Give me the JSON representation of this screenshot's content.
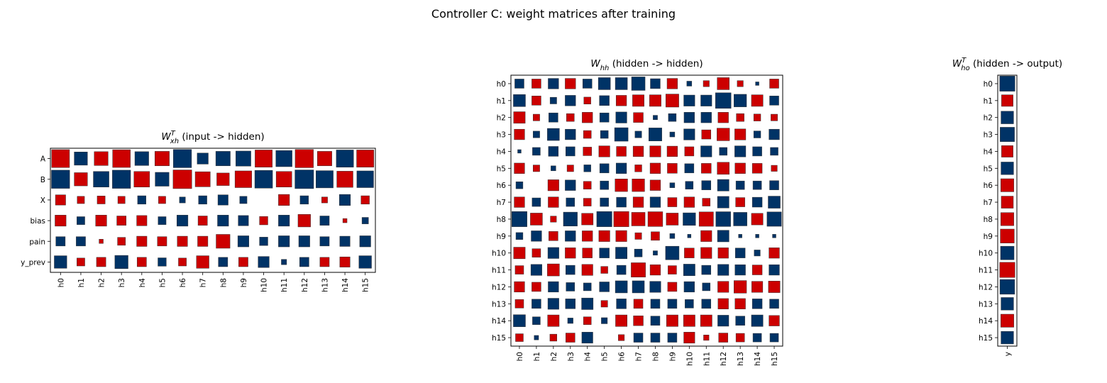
{
  "figure_title": "Controller C: weight matrices after training",
  "colors": {
    "positive": "#003366",
    "negative": "#CC0000",
    "edge": "#333333"
  },
  "chart_data": [
    {
      "type": "heatmap",
      "style": "hinton",
      "title": "W_xh^T (input -> hidden)",
      "title_base": "W",
      "title_sub": "xh",
      "title_sup": "T",
      "title_rest": " (input -> hidden)",
      "row_labels": [
        "A",
        "B",
        "X",
        "bias",
        "pain",
        "y_prev"
      ],
      "col_labels": [
        "h0",
        "h1",
        "h2",
        "h3",
        "h4",
        "h5",
        "h6",
        "h7",
        "h8",
        "h9",
        "h10",
        "h11",
        "h12",
        "h13",
        "h14",
        "h15"
      ],
      "max_abs": 1.0,
      "values": [
        [
          -0.92,
          0.5,
          -0.55,
          -0.9,
          0.55,
          -0.6,
          0.95,
          0.35,
          0.6,
          0.65,
          -0.85,
          0.75,
          -0.95,
          -0.6,
          0.85,
          -0.85
        ],
        [
          0.95,
          -0.5,
          0.7,
          0.95,
          -0.7,
          0.55,
          -1.0,
          -0.65,
          -0.45,
          -0.8,
          0.9,
          -0.7,
          1.0,
          0.85,
          -0.75,
          0.8
        ],
        [
          -0.3,
          -0.15,
          -0.18,
          -0.15,
          0.2,
          -0.15,
          0.1,
          0.2,
          0.3,
          0.15,
          0.0,
          -0.35,
          0.2,
          -0.1,
          0.35,
          -0.2
        ],
        [
          -0.35,
          0.18,
          -0.35,
          -0.25,
          -0.3,
          0.18,
          0.35,
          -0.25,
          0.35,
          0.3,
          -0.2,
          0.35,
          -0.45,
          0.25,
          -0.05,
          0.12
        ],
        [
          0.25,
          0.25,
          -0.05,
          -0.18,
          -0.3,
          -0.25,
          -0.3,
          -0.3,
          -0.55,
          0.35,
          0.2,
          0.35,
          0.35,
          0.25,
          0.3,
          0.35
        ],
        [
          0.45,
          -0.18,
          -0.25,
          0.5,
          -0.25,
          0.2,
          -0.18,
          -0.45,
          0.25,
          -0.25,
          0.35,
          0.08,
          0.25,
          -0.25,
          -0.3,
          0.45
        ]
      ]
    },
    {
      "type": "heatmap",
      "style": "hinton",
      "title": "W_hh (hidden -> hidden)",
      "title_base": "W",
      "title_sub": "hh",
      "title_sup": "",
      "title_rest": " (hidden -> hidden)",
      "row_labels": [
        "h0",
        "h1",
        "h2",
        "h3",
        "h4",
        "h5",
        "h6",
        "h7",
        "h8",
        "h9",
        "h10",
        "h11",
        "h12",
        "h13",
        "h14",
        "h15"
      ],
      "col_labels": [
        "h0",
        "h1",
        "h2",
        "h3",
        "h4",
        "h5",
        "h6",
        "h7",
        "h8",
        "h9",
        "h10",
        "h11",
        "h12",
        "h13",
        "h14",
        "h15"
      ],
      "max_abs": 1.0,
      "values": [
        [
          0.35,
          -0.35,
          0.45,
          -0.45,
          0.35,
          0.6,
          0.6,
          0.75,
          0.4,
          -0.45,
          0.1,
          -0.15,
          -0.6,
          -0.15,
          0.05,
          -0.35
        ],
        [
          0.6,
          -0.35,
          0.18,
          0.45,
          -0.2,
          0.4,
          -0.45,
          -0.55,
          -0.55,
          -0.7,
          0.5,
          0.5,
          1.0,
          0.65,
          -0.55,
          0.35
        ],
        [
          -0.55,
          -0.18,
          0.35,
          -0.25,
          -0.45,
          0.35,
          0.5,
          -0.4,
          0.08,
          0.25,
          0.45,
          0.45,
          -0.45,
          -0.25,
          -0.2,
          -0.18
        ],
        [
          -0.45,
          0.18,
          0.6,
          0.45,
          -0.25,
          0.25,
          0.75,
          0.18,
          0.7,
          0.1,
          0.5,
          -0.35,
          -0.65,
          -0.5,
          0.2,
          0.45
        ],
        [
          0.05,
          0.25,
          0.4,
          0.35,
          -0.3,
          -0.5,
          -0.4,
          -0.45,
          -0.5,
          -0.45,
          -0.35,
          0.5,
          0.25,
          0.5,
          0.35,
          0.25
        ],
        [
          -0.45,
          -0.18,
          0.1,
          -0.18,
          0.2,
          0.35,
          0.45,
          -0.2,
          -0.45,
          -0.4,
          0.35,
          -0.4,
          -0.6,
          -0.45,
          -0.4,
          -0.15
        ],
        [
          0.2,
          0.0,
          -0.5,
          0.45,
          -0.25,
          0.3,
          -0.65,
          -0.65,
          -0.45,
          0.1,
          0.25,
          0.35,
          0.55,
          0.3,
          0.3,
          0.35
        ],
        [
          -0.45,
          0.3,
          -0.45,
          0.3,
          -0.25,
          0.3,
          0.4,
          -0.45,
          0.45,
          -0.35,
          -0.45,
          -0.25,
          0.55,
          -0.35,
          0.4,
          0.6
        ],
        [
          0.95,
          -0.6,
          -0.15,
          0.8,
          -0.55,
          0.95,
          -0.95,
          -0.75,
          -0.9,
          -0.6,
          0.65,
          -0.85,
          0.9,
          0.75,
          -0.55,
          0.85
        ],
        [
          0.2,
          0.45,
          -0.35,
          0.45,
          -0.45,
          -0.5,
          -0.5,
          -0.18,
          -0.3,
          0.1,
          0.05,
          -0.5,
          0.55,
          0.05,
          0.05,
          0.05
        ],
        [
          -0.55,
          -0.3,
          0.5,
          -0.45,
          -0.4,
          0.4,
          0.55,
          0.25,
          0.08,
          0.75,
          -0.4,
          -0.5,
          -0.45,
          0.4,
          0.15,
          -0.45
        ],
        [
          -0.3,
          0.5,
          -0.6,
          0.35,
          -0.5,
          -0.2,
          0.35,
          -0.85,
          -0.45,
          -0.3,
          0.55,
          0.35,
          0.5,
          0.45,
          -0.4,
          0.45
        ],
        [
          -0.45,
          -0.35,
          0.45,
          0.3,
          0.25,
          0.4,
          0.6,
          0.6,
          0.5,
          -0.35,
          0.45,
          0.25,
          -0.5,
          -0.65,
          -0.5,
          -0.55
        ],
        [
          -0.3,
          0.35,
          0.5,
          0.4,
          0.55,
          -0.18,
          0.4,
          -0.35,
          0.35,
          0.35,
          0.3,
          0.35,
          -0.45,
          -0.45,
          0.4,
          0.35
        ],
        [
          0.6,
          0.25,
          -0.55,
          0.12,
          -0.25,
          0.15,
          -0.55,
          -0.4,
          0.35,
          -0.55,
          -0.55,
          -0.55,
          0.5,
          0.35,
          0.55,
          -0.45
        ],
        [
          -0.25,
          0.08,
          -0.2,
          -0.35,
          0.5,
          0.0,
          -0.15,
          0.35,
          0.35,
          0.35,
          -0.5,
          -0.12,
          -0.35,
          -0.3,
          0.3,
          0.3
        ]
      ]
    },
    {
      "type": "heatmap",
      "style": "hinton",
      "title": "W_ho^T (hidden -> output)",
      "title_base": "W",
      "title_sub": "ho",
      "title_sup": "T",
      "title_rest": " (hidden -> output)",
      "row_labels": [
        "h0",
        "h1",
        "h2",
        "h3",
        "h4",
        "h5",
        "h6",
        "h7",
        "h8",
        "h9",
        "h10",
        "h11",
        "h12",
        "h13",
        "h14",
        "h15"
      ],
      "col_labels": [
        "y"
      ],
      "max_abs": 1.0,
      "values": [
        [
          0.95
        ],
        [
          -0.55
        ],
        [
          0.65
        ],
        [
          0.85
        ],
        [
          -0.55
        ],
        [
          0.65
        ],
        [
          -0.7
        ],
        [
          -0.6
        ],
        [
          -0.7
        ],
        [
          -0.8
        ],
        [
          0.75
        ],
        [
          -0.95
        ],
        [
          0.9
        ],
        [
          0.65
        ],
        [
          -0.7
        ],
        [
          0.65
        ]
      ]
    }
  ]
}
